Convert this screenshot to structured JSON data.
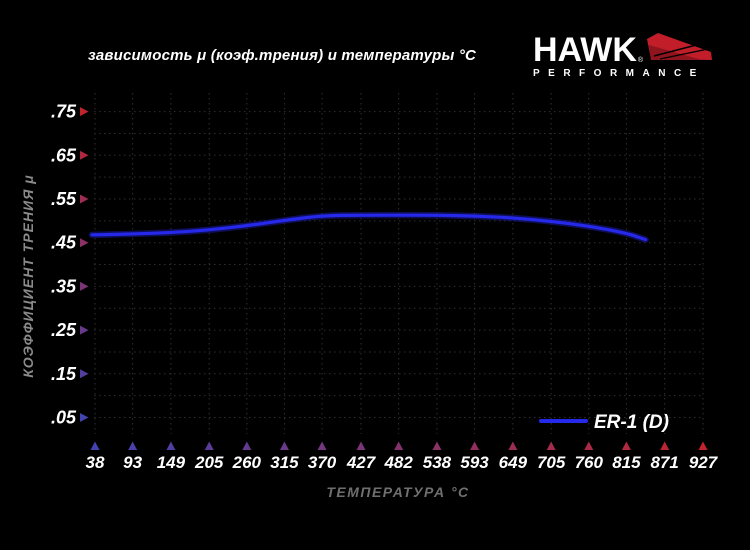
{
  "title": "зависимость μ (коэф.трения) и температуры °C",
  "logo": {
    "brand": "HAWK",
    "registered": "®",
    "subtitle": "PERFORMANCE"
  },
  "chart_data": {
    "type": "line",
    "title": "зависимость μ (коэф.трения) и температуры °C",
    "xlabel": "ТЕМПЕРАТУРА °C",
    "ylabel": "КОЭФФИЦИЕНТ ТРЕНИЯ μ",
    "x_ticks": [
      38,
      93,
      149,
      205,
      260,
      315,
      370,
      427,
      482,
      538,
      593,
      649,
      705,
      760,
      815,
      871,
      927
    ],
    "y_tick_labels": [
      ".75",
      ".65",
      ".55",
      ".45",
      ".35",
      ".25",
      ".15",
      ".05"
    ],
    "y_tick_values": [
      0.75,
      0.65,
      0.55,
      0.45,
      0.35,
      0.25,
      0.15,
      0.05
    ],
    "xlim": [
      34,
      927
    ],
    "ylim": [
      0.0,
      0.79
    ],
    "grid": "dotted",
    "grid_step_y": 0.05,
    "legend_position": "bottom-right",
    "series": [
      {
        "name": "ER-1 (D)",
        "color": "#2628ea",
        "points": [
          [
            38,
            0.468
          ],
          [
            93,
            0.47
          ],
          [
            149,
            0.473
          ],
          [
            205,
            0.479
          ],
          [
            260,
            0.489
          ],
          [
            315,
            0.501
          ],
          [
            370,
            0.512
          ],
          [
            427,
            0.513
          ],
          [
            482,
            0.513
          ],
          [
            538,
            0.513
          ],
          [
            593,
            0.511
          ],
          [
            649,
            0.507
          ],
          [
            705,
            0.499
          ],
          [
            760,
            0.488
          ],
          [
            815,
            0.472
          ],
          [
            843,
            0.457
          ]
        ]
      }
    ]
  },
  "colors": {
    "background": "#000000",
    "curve_blue": "#2628ea",
    "curve_glow": "#171790",
    "axis_red": "#c2242c",
    "axis_blue": "#4242b0",
    "grid": "#2f2f2f",
    "label_white": "#ffffff",
    "axis_title_gray": "#787878",
    "logo_red": "#c21e2a"
  }
}
